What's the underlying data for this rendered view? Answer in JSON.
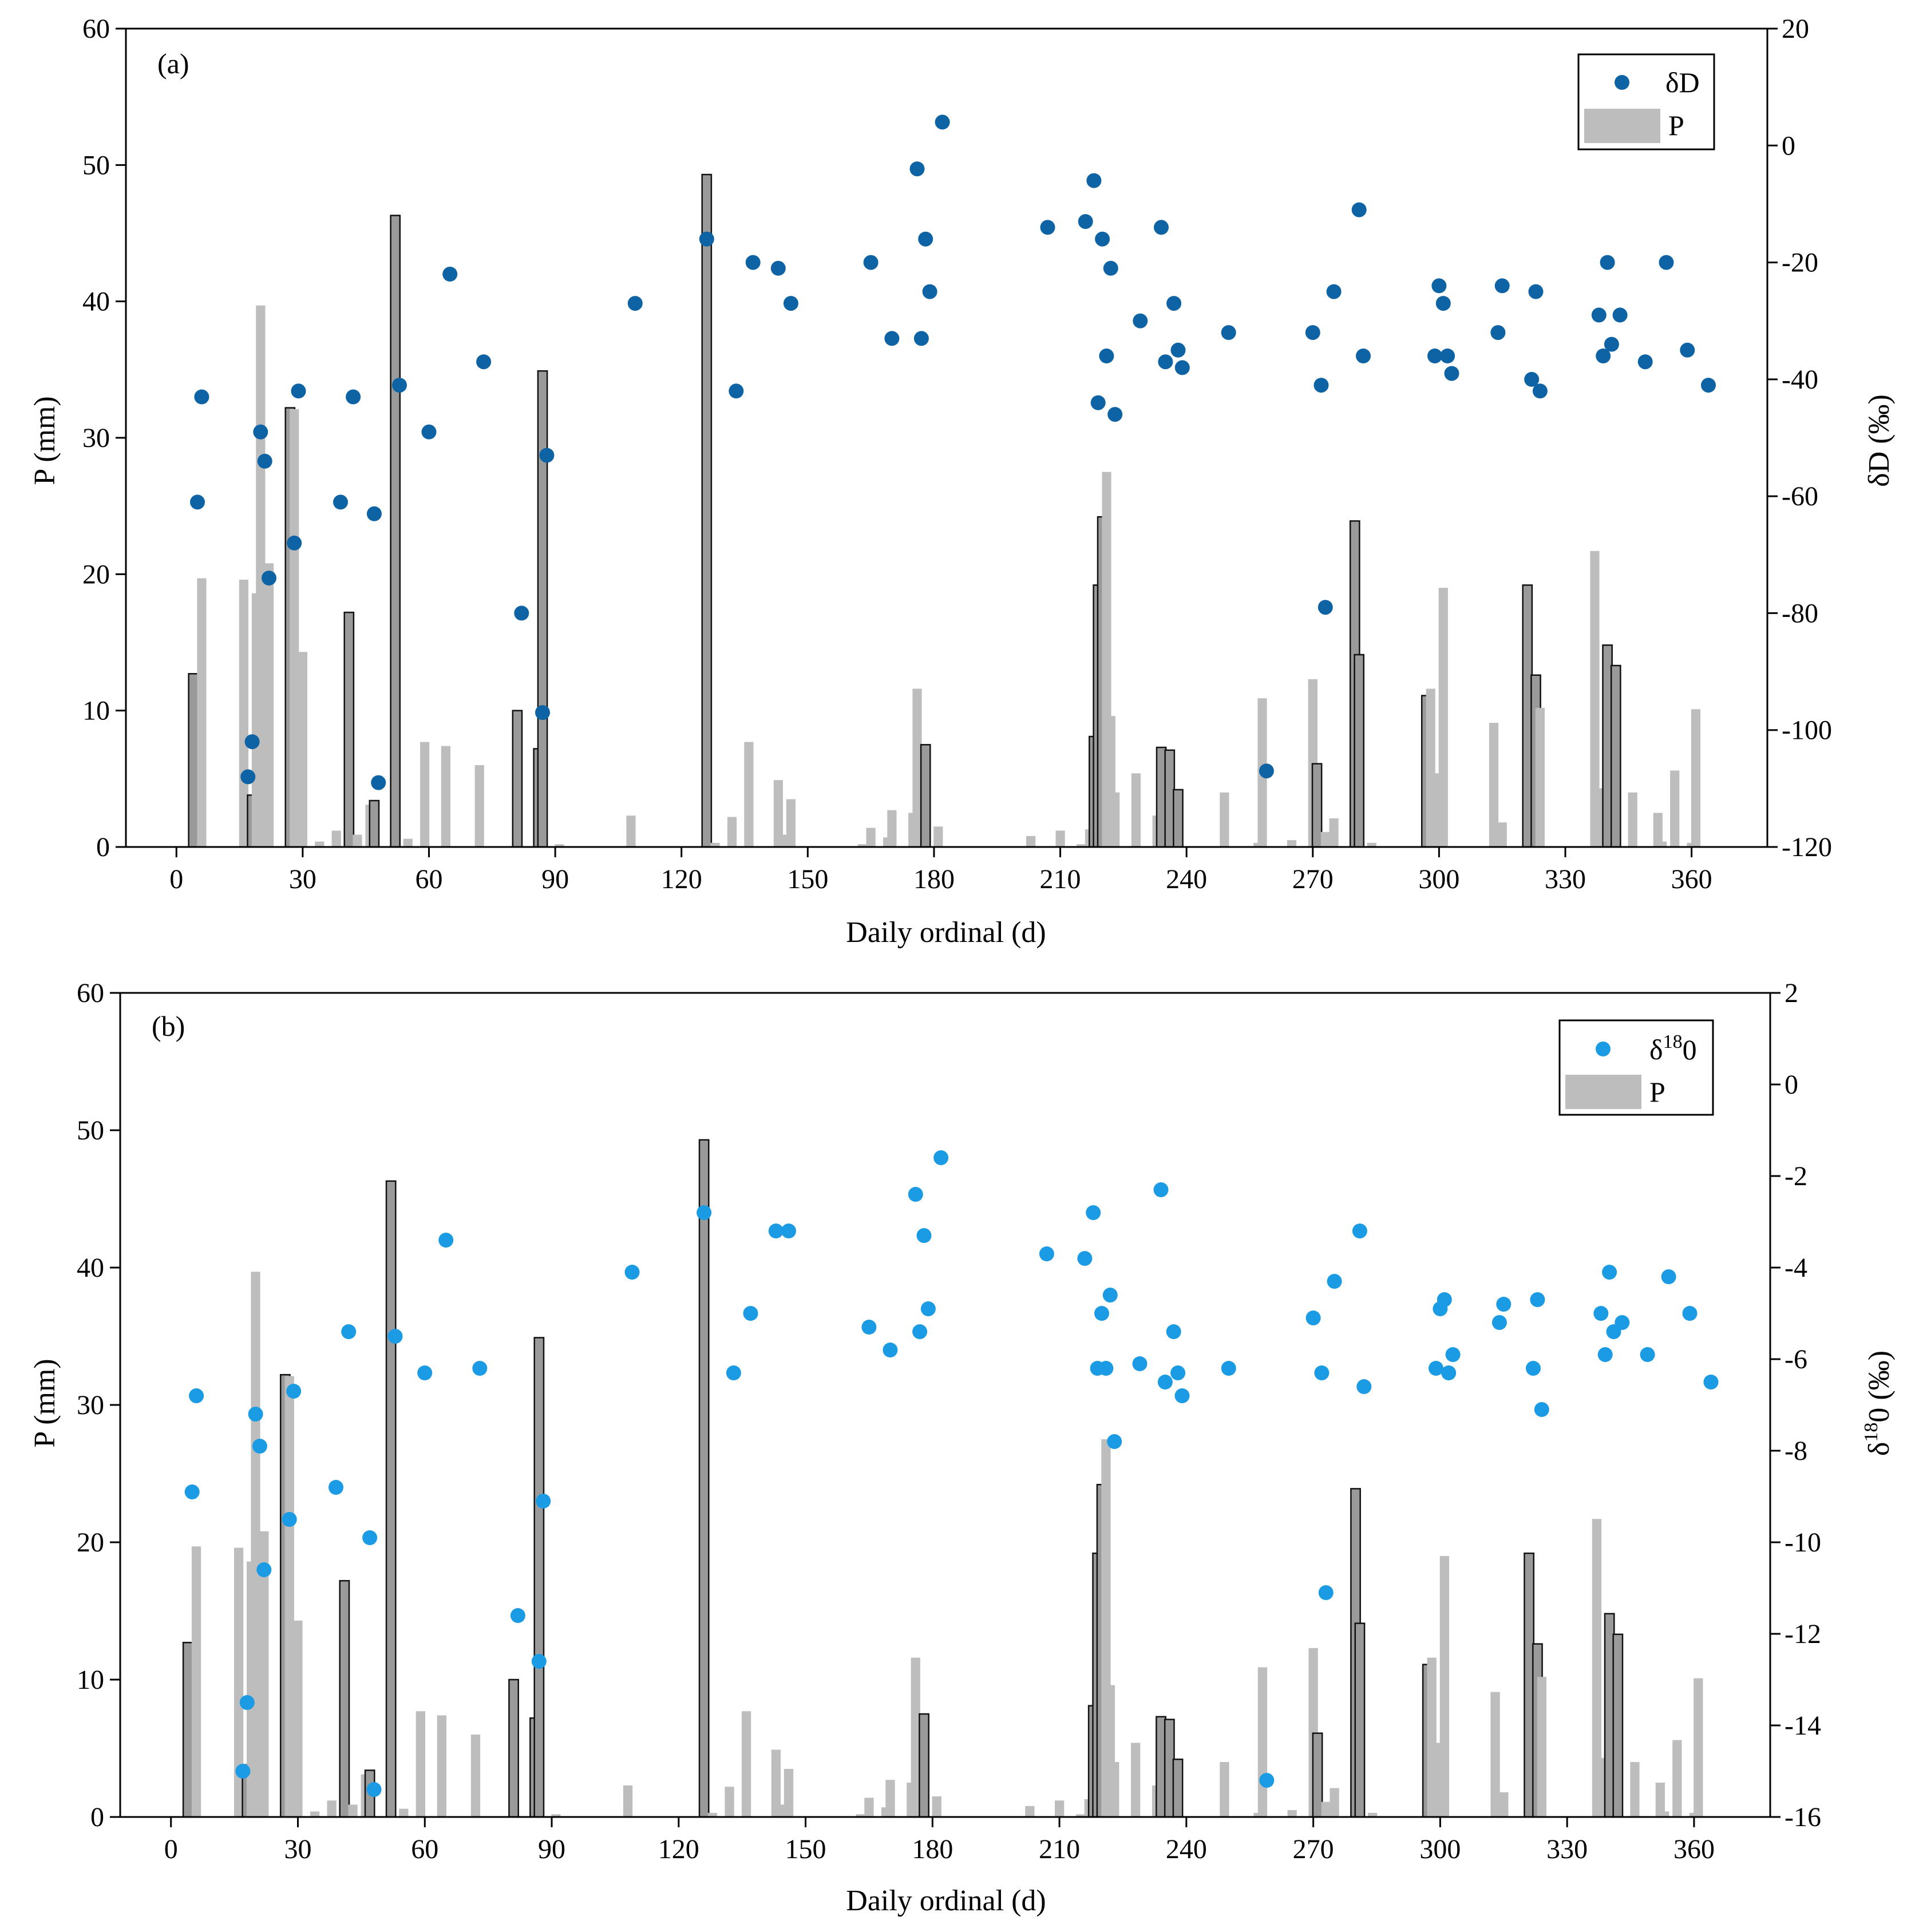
{
  "chart_data": [
    {
      "type": "bar+scatter",
      "panel": "(a)",
      "xlabel": "Daily ordinal (d)",
      "ylabel_left": "P (mm)",
      "ylabel_right": "δD (‰)",
      "xlim": [
        -12,
        378
      ],
      "xticks": [
        0,
        30,
        60,
        90,
        120,
        150,
        180,
        210,
        240,
        270,
        300,
        330,
        360
      ],
      "ylim_left": [
        0,
        60
      ],
      "yticks_left": [
        0,
        10,
        20,
        30,
        40,
        50,
        60
      ],
      "ylim_right": [
        -120,
        20
      ],
      "yticks_right": [
        -120,
        -100,
        -80,
        -60,
        -40,
        -20,
        0,
        20
      ],
      "legend": [
        "δD",
        "P"
      ],
      "legend_position": "top-right",
      "scatter_color": "#0e63a5",
      "points": [
        [
          5,
          -61
        ],
        [
          6,
          -43
        ],
        [
          17,
          -108
        ],
        [
          18,
          -102
        ],
        [
          20,
          -49
        ],
        [
          21,
          -54
        ],
        [
          22,
          -74
        ],
        [
          28,
          -68
        ],
        [
          29,
          -42
        ],
        [
          39,
          -61
        ],
        [
          42,
          -43
        ],
        [
          47,
          -63
        ],
        [
          48,
          -109
        ],
        [
          53,
          -41
        ],
        [
          60,
          -49
        ],
        [
          65,
          -22
        ],
        [
          73,
          -37
        ],
        [
          82,
          -80
        ],
        [
          87,
          -97
        ],
        [
          88,
          -53
        ],
        [
          109,
          -27
        ],
        [
          126,
          -16
        ],
        [
          133,
          -42
        ],
        [
          137,
          -20
        ],
        [
          143,
          -21
        ],
        [
          146,
          -27
        ],
        [
          165,
          -20
        ],
        [
          170,
          -33
        ],
        [
          176,
          -4
        ],
        [
          177,
          -33
        ],
        [
          178,
          -16
        ],
        [
          179,
          -25
        ],
        [
          182,
          4
        ],
        [
          207,
          -14
        ],
        [
          216,
          -13
        ],
        [
          218,
          -6
        ],
        [
          219,
          -44
        ],
        [
          220,
          -16
        ],
        [
          221,
          -36
        ],
        [
          222,
          -21
        ],
        [
          223,
          -46
        ],
        [
          229,
          -30
        ],
        [
          234,
          -14
        ],
        [
          235,
          -37
        ],
        [
          237,
          -27
        ],
        [
          238,
          -35
        ],
        [
          239,
          -38
        ],
        [
          250,
          -32
        ],
        [
          259,
          -107
        ],
        [
          270,
          -32
        ],
        [
          272,
          -41
        ],
        [
          273,
          -79
        ],
        [
          275,
          -25
        ],
        [
          281,
          -11
        ],
        [
          282,
          -36
        ],
        [
          299,
          -36
        ],
        [
          300,
          -24
        ],
        [
          301,
          -27
        ],
        [
          302,
          -36
        ],
        [
          303,
          -39
        ],
        [
          314,
          -32
        ],
        [
          315,
          -24
        ],
        [
          322,
          -40
        ],
        [
          323,
          -25
        ],
        [
          324,
          -42
        ],
        [
          338,
          -29
        ],
        [
          339,
          -36
        ],
        [
          340,
          -20
        ],
        [
          341,
          -34
        ],
        [
          343,
          -29
        ],
        [
          349,
          -37
        ],
        [
          354,
          -20
        ],
        [
          359,
          -35
        ],
        [
          364,
          -41
        ]
      ]
    },
    {
      "type": "bar+scatter",
      "panel": "(b)",
      "xlabel": "Daily ordinal (d)",
      "ylabel_left": "P (mm)",
      "ylabel_right_main": "δ",
      "ylabel_right_sup": "18",
      "ylabel_right_rest": "0 (‰)",
      "xlim": [
        -12,
        378
      ],
      "xticks": [
        0,
        30,
        60,
        90,
        120,
        150,
        180,
        210,
        240,
        270,
        300,
        330,
        360
      ],
      "ylim_left": [
        0,
        60
      ],
      "yticks_left": [
        0,
        10,
        20,
        30,
        40,
        50,
        60
      ],
      "ylim_right": [
        -16,
        2
      ],
      "yticks_right": [
        -16,
        -14,
        -12,
        -10,
        -8,
        -6,
        -4,
        -2,
        0,
        2
      ],
      "legend_main": "δ",
      "legend_sup": "18",
      "legend_rest": "0",
      "legend_bar": "P",
      "legend_position": "top-right",
      "scatter_color": "#1a9be4",
      "points": [
        [
          5,
          -8.9
        ],
        [
          6,
          -6.8
        ],
        [
          17,
          -15
        ],
        [
          18,
          -13.5
        ],
        [
          20,
          -7.2
        ],
        [
          21,
          -7.9
        ],
        [
          22,
          -10.6
        ],
        [
          28,
          -9.5
        ],
        [
          29,
          -6.7
        ],
        [
          39,
          -8.8
        ],
        [
          42,
          -5.4
        ],
        [
          47,
          -9.9
        ],
        [
          48,
          -15.4
        ],
        [
          53,
          -5.5
        ],
        [
          60,
          -6.3
        ],
        [
          65,
          -3.4
        ],
        [
          73,
          -6.2
        ],
        [
          82,
          -11.6
        ],
        [
          87,
          -12.6
        ],
        [
          88,
          -9.1
        ],
        [
          109,
          -4.1
        ],
        [
          126,
          -2.8
        ],
        [
          133,
          -6.3
        ],
        [
          137,
          -5
        ],
        [
          143,
          -3.2
        ],
        [
          146,
          -3.2
        ],
        [
          165,
          -5.3
        ],
        [
          170,
          -5.8
        ],
        [
          176,
          -2.4
        ],
        [
          177,
          -5.4
        ],
        [
          178,
          -3.3
        ],
        [
          179,
          -4.9
        ],
        [
          182,
          -1.6
        ],
        [
          207,
          -3.7
        ],
        [
          216,
          -3.8
        ],
        [
          218,
          -2.8
        ],
        [
          219,
          -6.2
        ],
        [
          220,
          -5
        ],
        [
          221,
          -6.2
        ],
        [
          222,
          -4.6
        ],
        [
          223,
          -7.8
        ],
        [
          229,
          -6.1
        ],
        [
          234,
          -2.3
        ],
        [
          235,
          -6.5
        ],
        [
          237,
          -5.4
        ],
        [
          238,
          -6.3
        ],
        [
          239,
          -6.8
        ],
        [
          250,
          -6.2
        ],
        [
          259,
          -15.2
        ],
        [
          270,
          -5.1
        ],
        [
          272,
          -6.3
        ],
        [
          273,
          -11.1
        ],
        [
          275,
          -4.3
        ],
        [
          281,
          -3.2
        ],
        [
          282,
          -6.6
        ],
        [
          299,
          -6.2
        ],
        [
          300,
          -4.9
        ],
        [
          301,
          -4.7
        ],
        [
          302,
          -6.3
        ],
        [
          303,
          -5.9
        ],
        [
          314,
          -5.2
        ],
        [
          315,
          -4.8
        ],
        [
          322,
          -6.2
        ],
        [
          323,
          -4.7
        ],
        [
          324,
          -7.1
        ],
        [
          338,
          -5
        ],
        [
          339,
          -5.9
        ],
        [
          340,
          -4.1
        ],
        [
          341,
          -5.4
        ],
        [
          343,
          -5.2
        ],
        [
          349,
          -5.9
        ],
        [
          354,
          -4.2
        ],
        [
          359,
          -5
        ],
        [
          364,
          -6.5
        ]
      ]
    }
  ],
  "precipitation": [
    [
      4,
      12.7,
      "b"
    ],
    [
      6,
      19.7,
      "g"
    ],
    [
      16,
      19.6,
      "g"
    ],
    [
      18,
      3.8,
      "b"
    ],
    [
      19,
      18.6,
      "g"
    ],
    [
      20,
      39.7,
      "g"
    ],
    [
      22,
      20.8,
      "g"
    ],
    [
      27,
      32.2,
      "b"
    ],
    [
      28,
      32.1,
      "g"
    ],
    [
      30,
      14.3,
      "g"
    ],
    [
      34,
      0.4,
      "g"
    ],
    [
      38,
      1.2,
      "g"
    ],
    [
      41,
      17.2,
      "b"
    ],
    [
      43,
      0.9,
      "g"
    ],
    [
      46,
      3.1,
      "g"
    ],
    [
      47,
      3.4,
      "b"
    ],
    [
      52,
      46.3,
      "b"
    ],
    [
      55,
      0.6,
      "g"
    ],
    [
      59,
      7.7,
      "g"
    ],
    [
      64,
      7.4,
      "g"
    ],
    [
      72,
      6,
      "g"
    ],
    [
      81,
      10,
      "b"
    ],
    [
      86,
      7.2,
      "b"
    ],
    [
      87,
      34.9,
      "b"
    ],
    [
      91,
      0.2,
      "g"
    ],
    [
      108,
      2.3,
      "g"
    ],
    [
      126,
      49.3,
      "b"
    ],
    [
      128,
      0.3,
      "g"
    ],
    [
      132,
      2.2,
      "g"
    ],
    [
      136,
      7.7,
      "g"
    ],
    [
      143,
      4.9,
      "g"
    ],
    [
      144,
      0.9,
      "g"
    ],
    [
      146,
      3.5,
      "g"
    ],
    [
      163,
      0.2,
      "g"
    ],
    [
      165,
      1.4,
      "g"
    ],
    [
      169,
      0.7,
      "g"
    ],
    [
      170,
      2.7,
      "g"
    ],
    [
      175,
      2.5,
      "g"
    ],
    [
      176,
      11.6,
      "g"
    ],
    [
      178,
      7.5,
      "b"
    ],
    [
      181,
      1.5,
      "g"
    ],
    [
      203,
      0.8,
      "g"
    ],
    [
      210,
      1.2,
      "g"
    ],
    [
      215,
      0.2,
      "g"
    ],
    [
      217,
      1.3,
      "g"
    ],
    [
      218,
      8.1,
      "b"
    ],
    [
      219,
      19.2,
      "b"
    ],
    [
      220,
      24.2,
      "b"
    ],
    [
      221,
      27.5,
      "g"
    ],
    [
      222,
      9.6,
      "g"
    ],
    [
      223,
      4,
      "g"
    ],
    [
      228,
      5.4,
      "g"
    ],
    [
      233,
      2.3,
      "g"
    ],
    [
      234,
      7.3,
      "b"
    ],
    [
      236,
      7.1,
      "b"
    ],
    [
      238,
      4.2,
      "b"
    ],
    [
      249,
      4,
      "g"
    ],
    [
      257,
      0.3,
      "g"
    ],
    [
      258,
      10.9,
      "g"
    ],
    [
      265,
      0.5,
      "g"
    ],
    [
      270,
      12.3,
      "g"
    ],
    [
      271,
      6.1,
      "b"
    ],
    [
      273,
      1.1,
      "g"
    ],
    [
      275,
      2.1,
      "g"
    ],
    [
      280,
      23.9,
      "b"
    ],
    [
      281,
      14.1,
      "b"
    ],
    [
      284,
      0.3,
      "g"
    ],
    [
      297,
      11.1,
      "b"
    ],
    [
      298,
      11.6,
      "g"
    ],
    [
      300,
      5.4,
      "g"
    ],
    [
      301,
      19,
      "g"
    ],
    [
      313,
      9.1,
      "g"
    ],
    [
      315,
      1.8,
      "g"
    ],
    [
      321,
      19.2,
      "b"
    ],
    [
      323,
      12.6,
      "b"
    ],
    [
      324,
      10.2,
      "g"
    ],
    [
      337,
      21.7,
      "g"
    ],
    [
      338,
      4.3,
      "g"
    ],
    [
      340,
      14.8,
      "b"
    ],
    [
      342,
      13.3,
      "b"
    ],
    [
      346,
      4,
      "g"
    ],
    [
      352,
      2.5,
      "g"
    ],
    [
      353,
      0.4,
      "g"
    ],
    [
      356,
      5.6,
      "g"
    ],
    [
      360,
      0.3,
      "g"
    ],
    [
      361,
      10.1,
      "g"
    ]
  ]
}
